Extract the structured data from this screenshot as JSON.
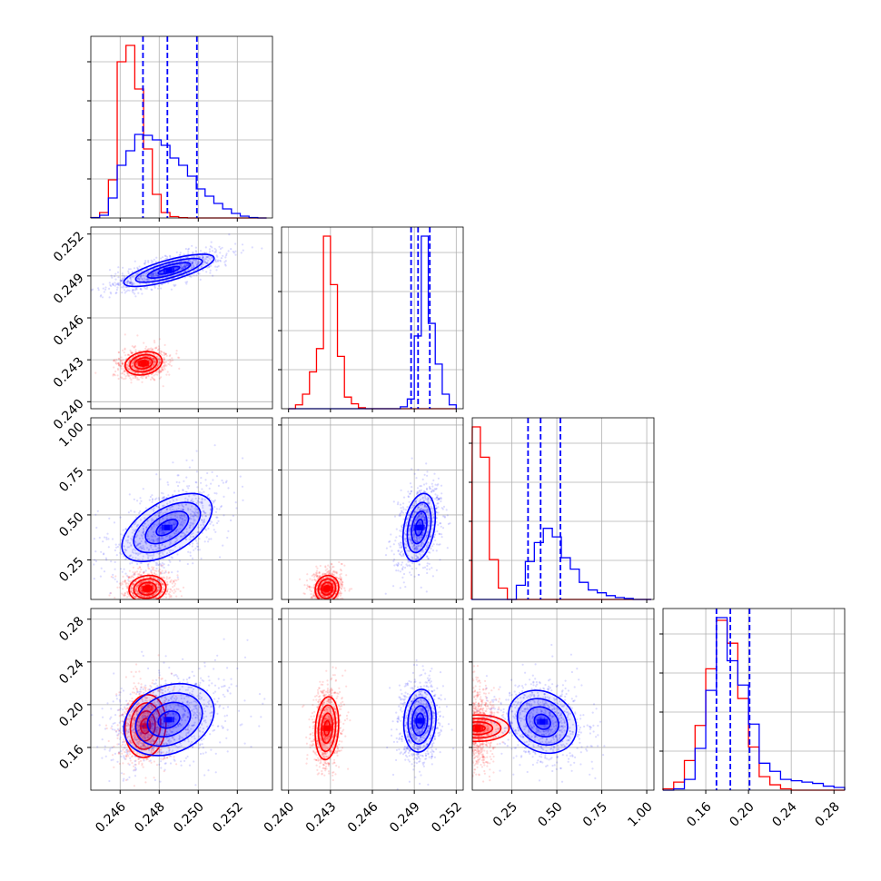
{
  "chart_data": {
    "type": "corner",
    "title": "",
    "parameters": [
      "",
      "",
      "",
      ""
    ],
    "series": [
      {
        "name": "",
        "color": "#ff0000"
      },
      {
        "name": "",
        "color": "#0000ff"
      }
    ],
    "grid": true,
    "axes": [
      {
        "range": [
          0.2445,
          0.2538
        ],
        "ticks": [
          0.246,
          0.248,
          0.25,
          0.252
        ],
        "tick_labels": [
          "0.246",
          "0.248",
          "0.250",
          "0.252"
        ]
      },
      {
        "range": [
          0.2395,
          0.2525
        ],
        "ticks": [
          0.24,
          0.243,
          0.246,
          0.249,
          0.252
        ],
        "tick_labels": [
          "0.240",
          "0.243",
          "0.246",
          "0.249",
          "0.252"
        ]
      },
      {
        "range": [
          0.03,
          1.04
        ],
        "ticks": [
          0.25,
          0.5,
          0.75,
          1.0
        ],
        "tick_labels": [
          "0.25",
          "0.50",
          "0.75",
          "1.00"
        ]
      },
      {
        "range": [
          0.12,
          0.29
        ],
        "ticks": [
          0.16,
          0.2,
          0.24,
          0.28
        ],
        "tick_labels": [
          "0.16",
          "0.20",
          "0.24",
          "0.28"
        ]
      }
    ],
    "diagonal": [
      {
        "bin_edges": [
          0.2445,
          0.24495,
          0.2454,
          0.24585,
          0.2463,
          0.24675,
          0.2472,
          0.24765,
          0.2481,
          0.24855,
          0.249,
          0.24945,
          0.2499,
          0.25035,
          0.2508,
          0.25125,
          0.2517,
          0.25215,
          0.2526,
          0.25305,
          0.2535
        ],
        "counts": [
          [
            0.5,
            6,
            42,
            172,
            190,
            142,
            76,
            26,
            6,
            1.5,
            0.3,
            0,
            0,
            0,
            0,
            0,
            0,
            0,
            0,
            0
          ],
          [
            0.3,
            3,
            22,
            58,
            74,
            92,
            91,
            86,
            80,
            66,
            58,
            46,
            32,
            24,
            16,
            10,
            5,
            2,
            0.5,
            0
          ]
        ],
        "quantiles": [
          0.24717,
          0.24842,
          0.24993
        ]
      },
      {
        "bin_edges": [
          0.24,
          0.2405,
          0.241,
          0.2415,
          0.242,
          0.2425,
          0.243,
          0.2435,
          0.244,
          0.2445,
          0.245,
          0.2455,
          0.246,
          0.2465,
          0.247,
          0.2475,
          0.248,
          0.2485,
          0.249,
          0.2495,
          0.25,
          0.2505,
          0.251,
          0.2515,
          0.252
        ],
        "counts": [
          [
            0,
            4,
            15,
            38,
            62,
            178,
            128,
            54,
            12,
            5,
            1,
            0,
            0,
            0,
            0,
            0,
            0,
            0,
            0,
            0,
            0,
            0,
            0,
            0
          ],
          [
            0,
            0,
            0,
            0,
            0,
            0,
            0,
            0,
            0,
            0,
            0,
            0,
            0,
            0,
            0,
            0,
            2,
            10,
            75,
            178,
            88,
            46,
            15,
            4
          ]
        ],
        "quantiles": [
          0.24877,
          0.24927,
          0.25011
        ]
      },
      {
        "bin_edges": [
          0.025,
          0.075,
          0.125,
          0.175,
          0.225,
          0.275,
          0.325,
          0.375,
          0.425,
          0.475,
          0.525,
          0.575,
          0.625,
          0.675,
          0.725,
          0.775,
          0.825,
          0.875,
          0.925,
          0.975,
          1.025
        ],
        "counts": [
          [
            182,
            150,
            42,
            12,
            0,
            0,
            0,
            0,
            0,
            0,
            0,
            0,
            0,
            0,
            0,
            0,
            0,
            0,
            0,
            0
          ],
          [
            0,
            0,
            0,
            0,
            0,
            15,
            40,
            60,
            75,
            66,
            44,
            32,
            18,
            10,
            7,
            4,
            2,
            1,
            0,
            0
          ]
        ],
        "quantiles": [
          0.34,
          0.41,
          0.52
        ]
      },
      {
        "bin_edges": [
          0.12,
          0.13,
          0.14,
          0.15,
          0.16,
          0.17,
          0.18,
          0.19,
          0.2,
          0.21,
          0.22,
          0.23,
          0.24,
          0.25,
          0.26,
          0.27,
          0.28,
          0.29
        ],
        "counts": [
          [
            1,
            6,
            22,
            48,
            90,
            126,
            109,
            68,
            32,
            10,
            4,
            1,
            0,
            0,
            0,
            0,
            0
          ],
          [
            0,
            1,
            8,
            31,
            74,
            128,
            96,
            78,
            49,
            20,
            14,
            8,
            7,
            6,
            5,
            3,
            2
          ]
        ],
        "quantiles": [
          0.17,
          0.183,
          0.201
        ]
      }
    ],
    "pairs": [
      {
        "row": 1,
        "col": 0,
        "red": {
          "mean": [
            0.2472,
            0.24275
          ],
          "sd": [
            0.00045,
            0.0004
          ],
          "corr": 0.2
        },
        "blue": {
          "mean": [
            0.2485,
            0.2494
          ],
          "sd": [
            0.0011,
            0.00055
          ],
          "corr": 0.75
        }
      },
      {
        "row": 2,
        "col": 0,
        "red": {
          "mean": [
            0.2474,
            0.09
          ],
          "sd": [
            0.00045,
            0.035
          ],
          "corr": 0.1
        },
        "blue": {
          "mean": [
            0.2484,
            0.43
          ],
          "sd": [
            0.0011,
            0.09
          ],
          "corr": 0.55
        }
      },
      {
        "row": 2,
        "col": 1,
        "red": {
          "mean": [
            0.24275,
            0.09
          ],
          "sd": [
            0.0004,
            0.035
          ],
          "corr": 0.1
        },
        "blue": {
          "mean": [
            0.24935,
            0.43
          ],
          "sd": [
            0.00055,
            0.09
          ],
          "corr": 0.3
        }
      },
      {
        "row": 3,
        "col": 0,
        "red": {
          "mean": [
            0.2473,
            0.18
          ],
          "sd": [
            0.0005,
            0.014
          ],
          "corr": 0.1
        },
        "blue": {
          "mean": [
            0.2485,
            0.186
          ],
          "sd": [
            0.0011,
            0.016
          ],
          "corr": 0.25
        }
      },
      {
        "row": 3,
        "col": 1,
        "red": {
          "mean": [
            0.24275,
            0.178
          ],
          "sd": [
            0.0004,
            0.014
          ],
          "corr": 0.15
        },
        "blue": {
          "mean": [
            0.2494,
            0.185
          ],
          "sd": [
            0.00055,
            0.014
          ],
          "corr": 0.1
        }
      },
      {
        "row": 3,
        "col": 2,
        "red": {
          "mean": [
            0.06,
            0.178
          ],
          "sd": [
            0.035,
            0.014
          ],
          "corr": 0.0
        },
        "blue": {
          "mean": [
            0.42,
            0.184
          ],
          "sd": [
            0.09,
            0.014
          ],
          "corr": -0.2
        }
      }
    ]
  }
}
